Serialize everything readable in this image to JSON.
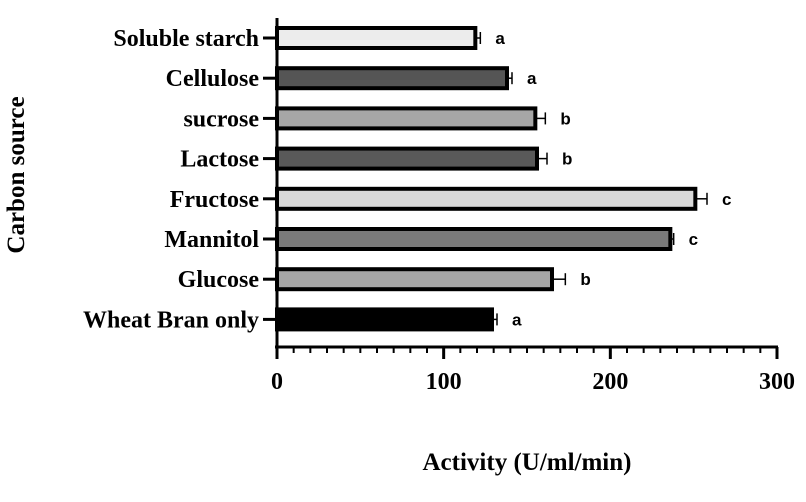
{
  "chart_data": {
    "type": "bar",
    "orientation": "horizontal",
    "categories": [
      "Soluble starch",
      "Cellulose",
      "sucrose",
      "Lactose",
      "Fructose",
      "Mannitol",
      "Glucose",
      "Wheat Bran only"
    ],
    "values": [
      119,
      138,
      155,
      156,
      251,
      236,
      165,
      129
    ],
    "errors": [
      3,
      3,
      6,
      6,
      7,
      2,
      8,
      3
    ],
    "significance": [
      "a",
      "a",
      "b",
      "b",
      "c",
      "c",
      "b",
      "a"
    ],
    "colors": [
      "#ececec",
      "#555555",
      "#a6a6a6",
      "#595959",
      "#d9d9d9",
      "#7a7a7a",
      "#a6a6a6",
      "#000000"
    ],
    "xlabel": "Activity (U/ml/min)",
    "ylabel": "Carbon source",
    "xlim": [
      0,
      300
    ],
    "xticks": [
      "0",
      "100",
      "200",
      "300"
    ],
    "grid": false
  }
}
